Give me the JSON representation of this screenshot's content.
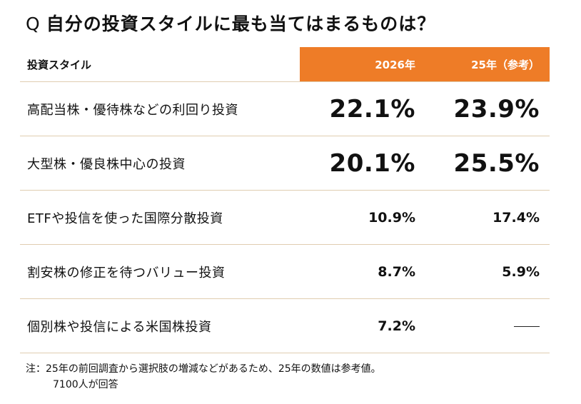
{
  "title": {
    "prefix": "Q",
    "text": "自分の投資スタイルに最も当てはまるものは？"
  },
  "chart_data": {
    "type": "table",
    "columns": [
      "投資スタイル",
      "2026年",
      "25年（参考）"
    ],
    "rows": [
      {
        "label": "高配当株・優待株などの利回り投資",
        "y2026": "22.1%",
        "y2025": "23.9%"
      },
      {
        "label": "大型株・優良株中心の投資",
        "y2026": "20.1%",
        "y2025": "25.5%"
      },
      {
        "label": "ETFや投信を使った国際分散投資",
        "y2026": "10.9%",
        "y2025": "17.4%"
      },
      {
        "label": "割安株の修正を待つバリュー投資",
        "y2026": "8.7%",
        "y2025": "5.9%"
      },
      {
        "label": "個別株や投信による米国株投資",
        "y2026": "7.2%",
        "y2025": null
      }
    ],
    "highlight_rows": 2,
    "header_color": "#ee7c27"
  },
  "note": {
    "line1": "注：25年の前回調査から選択肢の増減などがあるため、25年の数値は参考値。",
    "line2": "7100人が回答"
  }
}
